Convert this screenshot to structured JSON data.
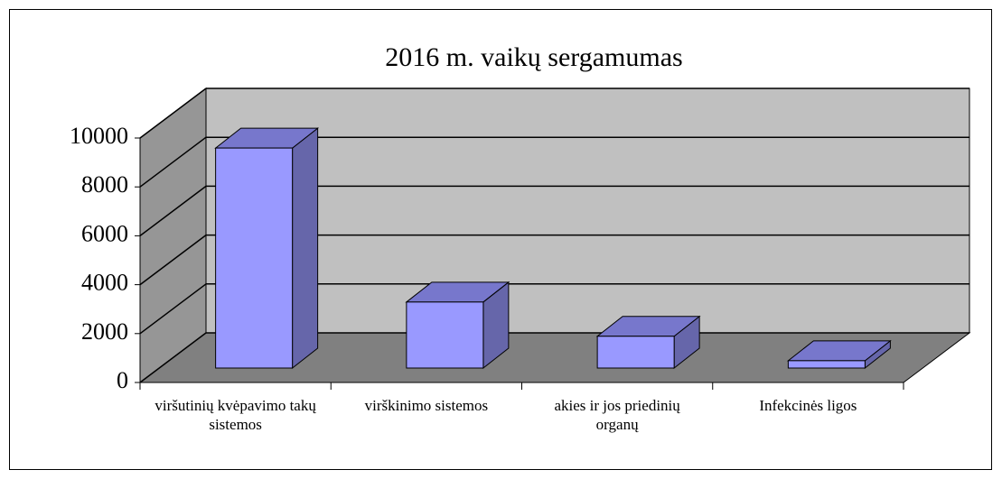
{
  "chart_data": {
    "type": "bar3d",
    "title": "2016 m. vaikų sergamumas",
    "categories": [
      "viršutinių kvėpavimo takų sistemos",
      "virškinimo sistemos",
      "akies ir jos priedinių organų",
      "Infekcinės ligos"
    ],
    "values": [
      9000,
      2700,
      1300,
      300
    ],
    "color": "#9999ff",
    "ylim": [
      0,
      10000
    ],
    "yticks": [
      0,
      2000,
      4000,
      6000,
      8000,
      10000
    ],
    "grid": true
  }
}
